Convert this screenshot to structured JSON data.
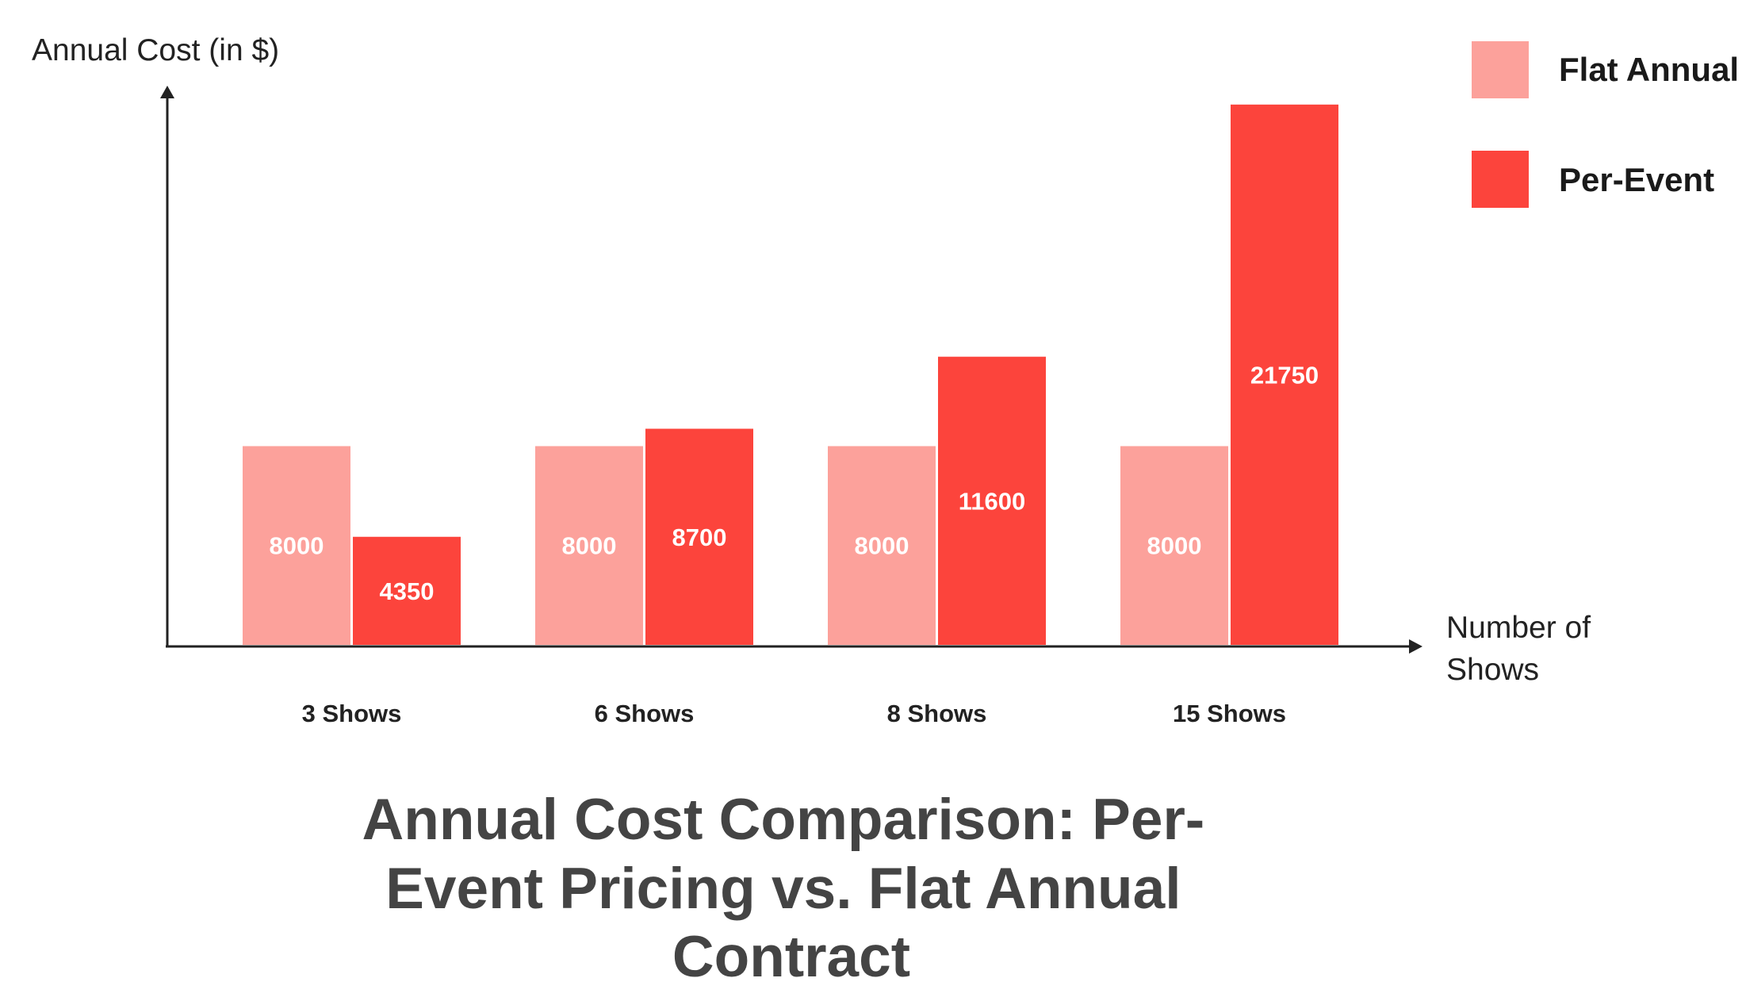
{
  "chart_data": {
    "type": "bar",
    "title": "Annual Cost Comparison: Per-Event Pricing vs. Flat Annual Contract",
    "title_lines": [
      "Annual Cost Comparison: Per-",
      "Event Pricing vs. Flat Annual",
      "Contract"
    ],
    "xlabel": "Number of Shows",
    "xlabel_lines": [
      "Number of",
      "Shows"
    ],
    "ylabel": "Annual Cost (in $)",
    "categories": [
      "3 Shows",
      "6 Shows",
      "8 Shows",
      "15 Shows"
    ],
    "series": [
      {
        "name": "Flat Annual",
        "values": [
          8000,
          8000,
          8000,
          8000
        ],
        "color": "#FCA19B"
      },
      {
        "name": "Per-Event",
        "values": [
          4350,
          8700,
          11600,
          21750
        ],
        "color": "#FC443C"
      }
    ],
    "ylim": [
      0,
      22000
    ],
    "grid": false,
    "legend_position": "top-right",
    "data_labels": true
  }
}
